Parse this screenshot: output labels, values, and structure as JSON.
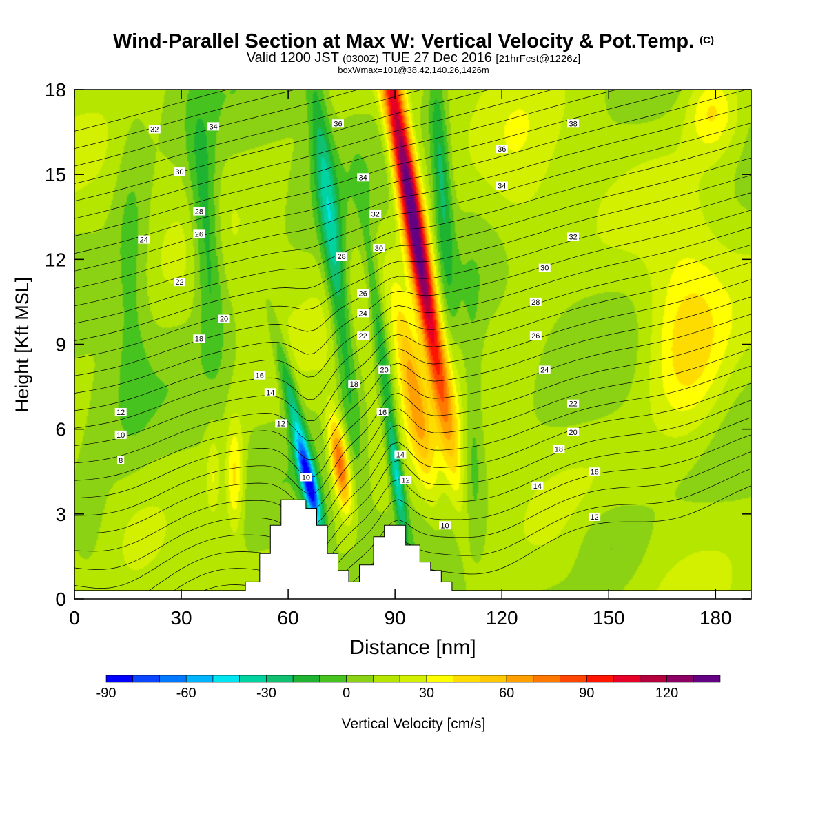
{
  "header": {
    "title": "Wind-Parallel Section at Max W: Vertical Velocity & Pot.Temp.",
    "title_mark": "(C)",
    "subtitle_a": "Valid 1200 JST",
    "subtitle_b": "(0300Z)",
    "subtitle_c": "TUE 27 Dec 2016",
    "subtitle_d": "[21hrFcst@1226z]",
    "subtitle2": "boxWmax=101@38.42,140.26,1426m"
  },
  "chart_data": {
    "type": "heatmap",
    "xlabel": "Distance [nm]",
    "ylabel": "Height [Kft MSL]",
    "xlim": [
      0,
      190
    ],
    "ylim": [
      0,
      18
    ],
    "xticks": [
      "0",
      "30",
      "60",
      "90",
      "120",
      "150",
      "180"
    ],
    "yticks": [
      "0",
      "3",
      "6",
      "9",
      "12",
      "15",
      "18"
    ],
    "colorbar": {
      "label": "Vertical Velocity [cm/s]",
      "ticks": [
        "-90",
        "-60",
        "-30",
        "0",
        "30",
        "60",
        "90",
        "120"
      ],
      "levels_min": -90,
      "levels_max": 140,
      "level_step": 10,
      "colors": [
        "#0000ff",
        "#0a46ff",
        "#0078ff",
        "#00b4ff",
        "#00e6f0",
        "#00d2a0",
        "#10c070",
        "#1eb432",
        "#46c31e",
        "#8cd214",
        "#b4e600",
        "#d2f000",
        "#ffff00",
        "#ffdc00",
        "#ffc800",
        "#ffa000",
        "#ff7800",
        "#ff4600",
        "#ff1400",
        "#e60028",
        "#b4003c",
        "#8c0064",
        "#640082"
      ]
    },
    "terrain": [
      [
        0,
        0.3
      ],
      [
        48,
        0.3
      ],
      [
        48,
        0.6
      ],
      [
        52,
        0.6
      ],
      [
        52,
        1.6
      ],
      [
        55,
        1.6
      ],
      [
        55,
        2.6
      ],
      [
        58,
        2.6
      ],
      [
        58,
        3.5
      ],
      [
        65,
        3.5
      ],
      [
        65,
        3.2
      ],
      [
        68,
        3.2
      ],
      [
        68,
        2.6
      ],
      [
        71,
        2.6
      ],
      [
        71,
        1.6
      ],
      [
        74,
        1.6
      ],
      [
        74,
        1.0
      ],
      [
        77,
        1.0
      ],
      [
        77,
        0.6
      ],
      [
        80,
        0.6
      ],
      [
        80,
        1.2
      ],
      [
        84,
        1.2
      ],
      [
        84,
        2.2
      ],
      [
        87,
        2.2
      ],
      [
        87,
        2.6
      ],
      [
        93,
        2.6
      ],
      [
        93,
        1.9
      ],
      [
        97,
        1.9
      ],
      [
        97,
        1.3
      ],
      [
        100,
        1.3
      ],
      [
        100,
        1.0
      ],
      [
        103,
        1.0
      ],
      [
        103,
        0.6
      ],
      [
        106,
        0.6
      ],
      [
        106,
        0.3
      ],
      [
        190,
        0.3
      ]
    ],
    "w_features": [
      {
        "x": 95,
        "y": 13.5,
        "sx": 3.2,
        "sy": 7.0,
        "tilt": -1.3,
        "amp": 135
      },
      {
        "x": 95,
        "y": 7.5,
        "sx": 3.5,
        "sy": 3.5,
        "tilt": -1.3,
        "amp": 50
      },
      {
        "x": 74.5,
        "y": 4.8,
        "sx": 2.4,
        "sy": 1.6,
        "tilt": -1.1,
        "amp": 75
      },
      {
        "x": 66,
        "y": 4.0,
        "sx": 2.2,
        "sy": 1.6,
        "tilt": -1.8,
        "amp": -90
      },
      {
        "x": 61,
        "y": 7.0,
        "sx": 2.2,
        "sy": 2.5,
        "tilt": -1.8,
        "amp": -40
      },
      {
        "x": 72.5,
        "y": 12.5,
        "sx": 3.0,
        "sy": 6.5,
        "tilt": -0.9,
        "amp": -45
      },
      {
        "x": 90.5,
        "y": 4.3,
        "sx": 1.8,
        "sy": 2.0,
        "tilt": -1.0,
        "amp": -50
      },
      {
        "x": 86,
        "y": 9.0,
        "sx": 2.0,
        "sy": 4.0,
        "tilt": -1.0,
        "amp": -30
      },
      {
        "x": 103,
        "y": 15,
        "sx": 2.5,
        "sy": 4.0,
        "tilt": -0.5,
        "amp": -35
      },
      {
        "x": 37,
        "y": 13,
        "sx": 4.0,
        "sy": 4.0,
        "tilt": -0.5,
        "amp": -35
      },
      {
        "x": 16,
        "y": 12,
        "sx": 5.0,
        "sy": 5.0,
        "tilt": 0,
        "amp": -18
      },
      {
        "x": 45,
        "y": 4.3,
        "sx": 2.5,
        "sy": 2.0,
        "tilt": 0,
        "amp": 35
      },
      {
        "x": 39,
        "y": 4.3,
        "sx": 2.0,
        "sy": 1.5,
        "tilt": 0,
        "amp": 20
      },
      {
        "x": 172,
        "y": 9.0,
        "sx": 11,
        "sy": 3.5,
        "tilt": 0,
        "amp": 35
      },
      {
        "x": 179,
        "y": 17.3,
        "sx": 7,
        "sy": 1.5,
        "tilt": 0,
        "amp": 30
      },
      {
        "x": 150,
        "y": 2.0,
        "sx": 10,
        "sy": 1.6,
        "tilt": 0,
        "amp": -15
      },
      {
        "x": 112,
        "y": 6.0,
        "sx": 3.0,
        "sy": 4.0,
        "tilt": 0,
        "amp": -20
      },
      {
        "x": 5,
        "y": 2.0,
        "sx": 8,
        "sy": 2.5,
        "tilt": 0,
        "amp": -12
      },
      {
        "x": 125,
        "y": 14,
        "sx": 10,
        "sy": 4,
        "tilt": 0,
        "amp": 12
      }
    ],
    "theta_levels": {
      "min": 8,
      "max": 39,
      "step": 1
    },
    "theta_labels": [
      {
        "text": "32",
        "x": 22.5,
        "y": 16.6
      },
      {
        "text": "34",
        "x": 39,
        "y": 16.7
      },
      {
        "text": "30",
        "x": 29.5,
        "y": 15.1
      },
      {
        "text": "28",
        "x": 35,
        "y": 13.7
      },
      {
        "text": "26",
        "x": 35,
        "y": 12.9
      },
      {
        "text": "24",
        "x": 19.5,
        "y": 12.7
      },
      {
        "text": "22",
        "x": 29.5,
        "y": 11.2
      },
      {
        "text": "20",
        "x": 42,
        "y": 9.9
      },
      {
        "text": "18",
        "x": 35,
        "y": 9.2
      },
      {
        "text": "16",
        "x": 52,
        "y": 7.9
      },
      {
        "text": "14",
        "x": 55,
        "y": 7.3
      },
      {
        "text": "12",
        "x": 58,
        "y": 6.2
      },
      {
        "text": "12",
        "x": 13,
        "y": 6.6
      },
      {
        "text": "10",
        "x": 13,
        "y": 5.8
      },
      {
        "text": "8",
        "x": 13,
        "y": 4.9
      },
      {
        "text": "10",
        "x": 65,
        "y": 4.3
      },
      {
        "text": "36",
        "x": 74,
        "y": 16.8
      },
      {
        "text": "34",
        "x": 81,
        "y": 14.9
      },
      {
        "text": "32",
        "x": 84.5,
        "y": 13.6
      },
      {
        "text": "30",
        "x": 85.5,
        "y": 12.4
      },
      {
        "text": "28",
        "x": 75,
        "y": 12.1
      },
      {
        "text": "26",
        "x": 81,
        "y": 10.8
      },
      {
        "text": "24",
        "x": 81,
        "y": 10.1
      },
      {
        "text": "22",
        "x": 81,
        "y": 9.3
      },
      {
        "text": "18",
        "x": 78.5,
        "y": 7.6
      },
      {
        "text": "20",
        "x": 87,
        "y": 8.1
      },
      {
        "text": "16",
        "x": 86.5,
        "y": 6.6
      },
      {
        "text": "14",
        "x": 91.5,
        "y": 5.1
      },
      {
        "text": "12",
        "x": 93,
        "y": 4.2
      },
      {
        "text": "10",
        "x": 104,
        "y": 2.6
      },
      {
        "text": "36",
        "x": 120,
        "y": 15.9
      },
      {
        "text": "34",
        "x": 120,
        "y": 14.6
      },
      {
        "text": "38",
        "x": 140,
        "y": 16.8
      },
      {
        "text": "32",
        "x": 140,
        "y": 12.8
      },
      {
        "text": "30",
        "x": 132,
        "y": 11.7
      },
      {
        "text": "28",
        "x": 129.5,
        "y": 10.5
      },
      {
        "text": "26",
        "x": 129.5,
        "y": 9.3
      },
      {
        "text": "24",
        "x": 132,
        "y": 8.1
      },
      {
        "text": "22",
        "x": 140,
        "y": 6.9
      },
      {
        "text": "20",
        "x": 140,
        "y": 5.9
      },
      {
        "text": "18",
        "x": 136,
        "y": 5.3
      },
      {
        "text": "16",
        "x": 146,
        "y": 4.5
      },
      {
        "text": "14",
        "x": 130,
        "y": 4.0
      },
      {
        "text": "12",
        "x": 146,
        "y": 2.9
      }
    ]
  }
}
